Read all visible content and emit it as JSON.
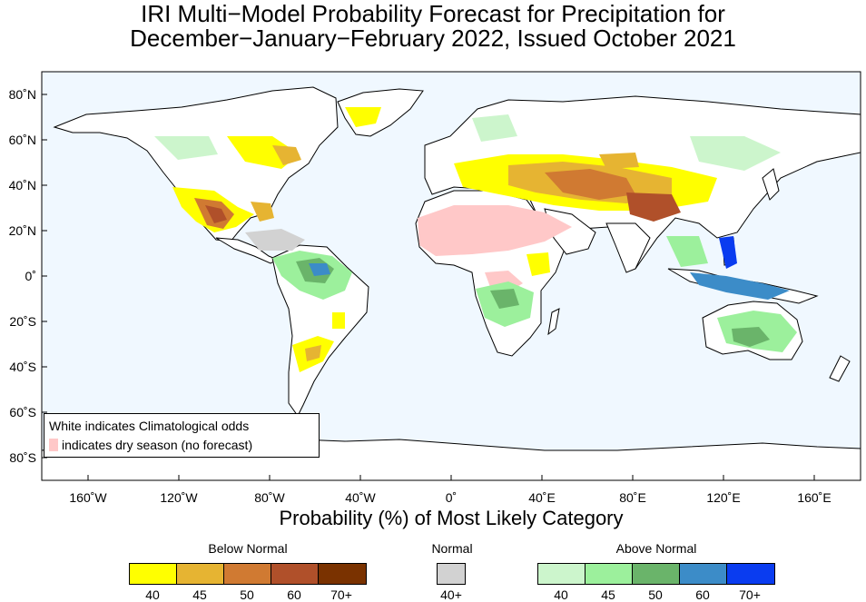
{
  "title": {
    "line1": "IRI Multi−Model Probability Forecast for Precipitation for",
    "line2": "December−January−February 2022, Issued October 2021"
  },
  "map": {
    "ocean_color": "#f0f8ff",
    "land_outline_color": "#000000",
    "lat_ticks": [
      "80˚N",
      "60˚N",
      "40˚N",
      "20˚N",
      "0˚",
      "20˚S",
      "40˚S",
      "60˚S",
      "80˚S"
    ],
    "lon_ticks": [
      "160˚W",
      "120˚W",
      "80˚W",
      "40˚W",
      "0˚",
      "40˚E",
      "80˚E",
      "120˚E",
      "160˚E"
    ],
    "x_axis_title": "Probability (%) of Most Likely Category"
  },
  "inset": {
    "line1": "White indicates Climatological odds",
    "line2": "indicates dry season (no forecast)",
    "dry_season_color": "#ffc8c8"
  },
  "legend": {
    "below_normal": {
      "title": "Below Normal",
      "labels": [
        "40",
        "45",
        "50",
        "60",
        "70+"
      ],
      "colors": [
        "#ffff00",
        "#e6b432",
        "#d07a32",
        "#b0502a",
        "#7a3200"
      ]
    },
    "normal": {
      "title": "Normal",
      "labels": [
        "40+"
      ],
      "colors": [
        "#d2d2d2"
      ]
    },
    "above_normal": {
      "title": "Above Normal",
      "labels": [
        "40",
        "45",
        "50",
        "60",
        "70+"
      ],
      "colors": [
        "#ccf5cc",
        "#9cf09c",
        "#6ab46a",
        "#3c8cc8",
        "#0a3cf0"
      ]
    }
  }
}
